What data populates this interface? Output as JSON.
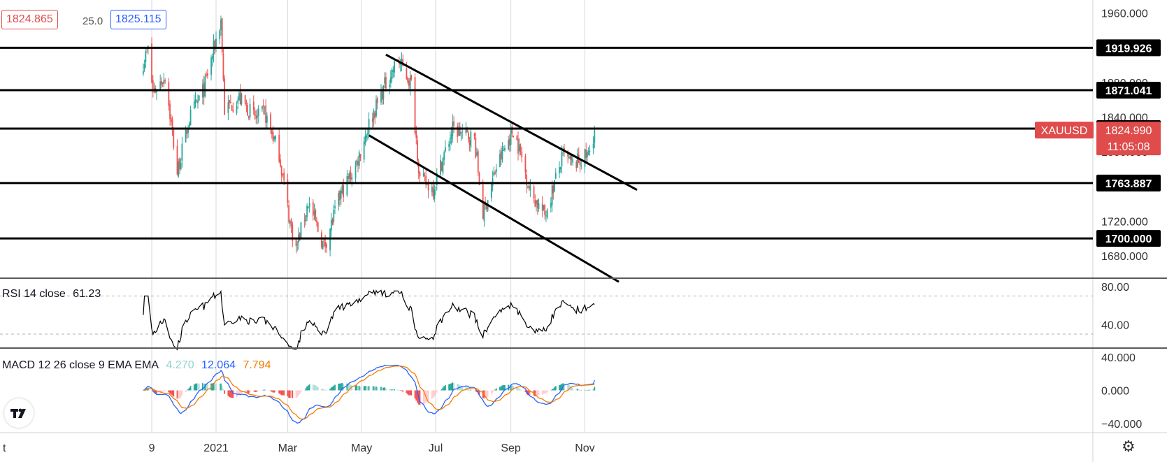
{
  "quote": {
    "bid": "1824.865",
    "spread": "25.0",
    "ask": "1825.115"
  },
  "symbol": {
    "name": "XAUUSD",
    "price": "1824.990",
    "countdown": "11:05:08"
  },
  "colors": {
    "bull": "#26a69a",
    "bear": "#ef5350",
    "symbol_bg": "#e04b4b",
    "macd": "#2962ff",
    "signal": "#f57c00",
    "rsi": "#000000"
  },
  "price_axis": {
    "ticks": [
      "1960.000",
      "1880.000",
      "1840.000",
      "1800.000",
      "1720.000",
      "1680.000"
    ]
  },
  "levels": [
    "1919.926",
    "1871.041",
    "1826.719",
    "1763.887",
    "1700.000"
  ],
  "time_axis": {
    "ticks": [
      "t",
      "9",
      "2021",
      "Mar",
      "May",
      "Jul",
      "Sep",
      "Nov"
    ]
  },
  "rsi": {
    "title": "RSI 14 close",
    "value": "61.23",
    "ticks": [
      "80.00",
      "40.00"
    ]
  },
  "macd": {
    "title": "MACD 12 26 close 9 EMA EMA",
    "hist": "4.270",
    "macd": "12.064",
    "signal": "7.794",
    "ticks": [
      "40.000",
      "0.000",
      "−40.000"
    ]
  },
  "icons": {
    "logo": "tradingview-logo-icon",
    "settings": "gear-icon"
  },
  "chart_data": {
    "type": "candlestick",
    "symbol": "XAUUSD",
    "ylim": [
      1655,
      1975
    ],
    "horizontal_levels": [
      1919.926,
      1871.041,
      1826.719,
      1763.887,
      1700.0
    ],
    "trendlines": [
      {
        "from": [
          "2021-05-21",
          1912
        ],
        "to": [
          "2021-12-14",
          1756
        ]
      },
      {
        "from": [
          "2021-05-07",
          1819
        ],
        "to": [
          "2021-11-29",
          1650
        ]
      }
    ],
    "anchors": [
      [
        "2020-11-01",
        1900
      ],
      [
        "2020-11-06",
        1918
      ],
      [
        "2020-11-10",
        1868
      ],
      [
        "2020-11-20",
        1888
      ],
      [
        "2020-11-30",
        1776
      ],
      [
        "2020-12-10",
        1838
      ],
      [
        "2020-12-22",
        1872
      ],
      [
        "2021-01-05",
        1952
      ],
      [
        "2021-01-08",
        1848
      ],
      [
        "2021-01-20",
        1862
      ],
      [
        "2021-02-03",
        1838
      ],
      [
        "2021-02-10",
        1845
      ],
      [
        "2021-02-22",
        1798
      ],
      [
        "2021-03-03",
        1718
      ],
      [
        "2021-03-08",
        1688
      ],
      [
        "2021-03-18",
        1742
      ],
      [
        "2021-03-31",
        1690
      ],
      [
        "2021-04-14",
        1752
      ],
      [
        "2021-04-26",
        1783
      ],
      [
        "2021-05-07",
        1832
      ],
      [
        "2021-05-20",
        1876
      ],
      [
        "2021-05-31",
        1906
      ],
      [
        "2021-06-11",
        1878
      ],
      [
        "2021-06-18",
        1768
      ],
      [
        "2021-06-29",
        1758
      ],
      [
        "2021-07-15",
        1826
      ],
      [
        "2021-08-02",
        1815
      ],
      [
        "2021-08-09",
        1728
      ],
      [
        "2021-08-20",
        1782
      ],
      [
        "2021-09-03",
        1826
      ],
      [
        "2021-09-10",
        1793
      ],
      [
        "2021-09-17",
        1754
      ],
      [
        "2021-09-29",
        1727
      ],
      [
        "2021-10-14",
        1796
      ],
      [
        "2021-10-22",
        1785
      ],
      [
        "2021-11-04",
        1796
      ],
      [
        "2021-11-09",
        1825
      ]
    ],
    "rsi_14": {
      "last": 61.23,
      "levels": [
        70,
        30
      ]
    },
    "macd_12_26_9": {
      "histogram": 4.27,
      "macd": 12.064,
      "signal": 7.794
    }
  }
}
